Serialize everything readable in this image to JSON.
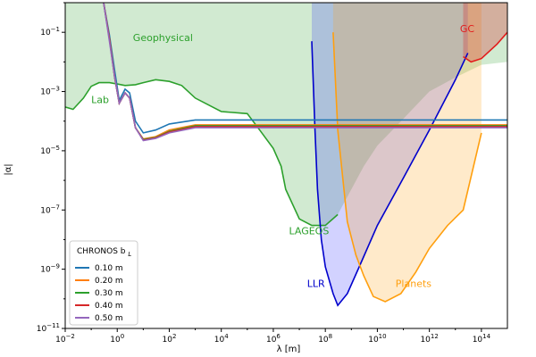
{
  "chart_data": {
    "type": "line",
    "title": "",
    "xlabel": "λ [m]",
    "ylabel": "|α|",
    "xscale": "log",
    "yscale": "log",
    "xlim": [
      0.01,
      1000000000000000.0
    ],
    "ylim": [
      1e-11,
      1
    ],
    "x_ticks": [
      {
        "value": 0.01,
        "base": "10",
        "exp": "−2"
      },
      {
        "value": 1,
        "base": "10",
        "exp": "0"
      },
      {
        "value": 100,
        "base": "10",
        "exp": "2"
      },
      {
        "value": 10000,
        "base": "10",
        "exp": "4"
      },
      {
        "value": 1000000,
        "base": "10",
        "exp": "6"
      },
      {
        "value": 100000000,
        "base": "10",
        "exp": "8"
      },
      {
        "value": 10000000000,
        "base": "10",
        "exp": "10"
      },
      {
        "value": 1000000000000,
        "base": "10",
        "exp": "12"
      },
      {
        "value": 100000000000000,
        "base": "10",
        "exp": "14"
      }
    ],
    "y_ticks": [
      {
        "value": 0.1,
        "base": "10",
        "exp": "−1"
      },
      {
        "value": 0.001,
        "base": "10",
        "exp": "−3"
      },
      {
        "value": 1e-05,
        "base": "10",
        "exp": "−5"
      },
      {
        "value": 1e-07,
        "base": "10",
        "exp": "−7"
      },
      {
        "value": 1e-09,
        "base": "10",
        "exp": "−9"
      },
      {
        "value": 1e-11,
        "base": "10",
        "exp": "−11"
      }
    ],
    "regions": [
      {
        "name": "Geophysical+Lab",
        "fill": "#2ca02c",
        "opacity": 0.22,
        "boundary": [
          [
            0.01,
            0.0003
          ],
          [
            0.02,
            0.00025
          ],
          [
            0.05,
            0.0006
          ],
          [
            0.1,
            0.0015
          ],
          [
            0.2,
            0.002
          ],
          [
            0.5,
            0.002
          ],
          [
            1,
            0.0018
          ],
          [
            2,
            0.0016
          ],
          [
            5,
            0.0017
          ],
          [
            10,
            0.002
          ],
          [
            30,
            0.0025
          ],
          [
            100,
            0.0022
          ],
          [
            300,
            0.0016
          ],
          [
            1000,
            0.0006
          ],
          [
            10000,
            0.00021
          ],
          [
            100000,
            0.00018
          ],
          [
            300000,
            5e-05
          ],
          [
            1000000,
            1.2e-05
          ],
          [
            2000000,
            3e-06
          ],
          [
            3000000,
            5e-07
          ],
          [
            10000000,
            5e-08
          ],
          [
            30000000,
            3e-08
          ],
          [
            100000000,
            3e-08
          ],
          [
            300000000,
            7e-08
          ],
          [
            1000000000,
            5e-07
          ],
          [
            3000000000,
            3e-06
          ],
          [
            10000000000,
            1.5e-05
          ],
          [
            100000000000,
            0.00012
          ],
          [
            1000000000000,
            0.001
          ],
          [
            10000000000000,
            0.003
          ],
          [
            100000000000000,
            0.008
          ],
          [
            1000000000000000,
            0.01
          ]
        ]
      },
      {
        "name": "LLR",
        "fill": "#1f1fff",
        "opacity": 0.2,
        "boundary": [
          [
            30000000,
            0.05
          ],
          [
            40000000,
            5e-05
          ],
          [
            50000000,
            5e-07
          ],
          [
            70000000,
            1e-08
          ],
          [
            100000000,
            1.2e-09
          ],
          [
            200000000,
            1.5e-10
          ],
          [
            300000000,
            6e-11
          ],
          [
            700000000,
            1.5e-10
          ],
          [
            2000000000,
            1.2e-09
          ],
          [
            10000000000,
            3e-08
          ],
          [
            100000000000,
            1.2e-06
          ],
          [
            1000000000000,
            5e-05
          ],
          [
            10000000000000,
            0.0025
          ],
          [
            30000000000000,
            0.02
          ]
        ]
      },
      {
        "name": "Planets",
        "fill": "#ff9f0e",
        "opacity": 0.22,
        "boundary": [
          [
            200000000,
            0.1
          ],
          [
            300000000,
            5e-05
          ],
          [
            700000000,
            4e-08
          ],
          [
            1500000000,
            3e-09
          ],
          [
            3000000000,
            6e-10
          ],
          [
            7000000000,
            1.2e-10
          ],
          [
            20000000000,
            8e-11
          ],
          [
            80000000000,
            1.5e-10
          ],
          [
            300000000000,
            8e-10
          ],
          [
            1000000000000,
            5e-09
          ],
          [
            5000000000000,
            3e-08
          ],
          [
            20000000000000,
            1e-07
          ],
          [
            100000000000000,
            4e-05
          ]
        ]
      },
      {
        "name": "GC",
        "fill": "#d62728",
        "opacity": 0.3,
        "boundary": [
          [
            20000000000000,
            0.015
          ],
          [
            40000000000000,
            0.01
          ],
          [
            100000000000000,
            0.013
          ],
          [
            400000000000000,
            0.04
          ],
          [
            1000000000000000,
            0.1
          ]
        ]
      }
    ],
    "exclusion_curves": [
      {
        "name": "LAGEOS",
        "color": "#2ca02c"
      },
      {
        "name": "LLR",
        "color": "#0000cc"
      },
      {
        "name": "Planets",
        "color": "#ff9f0e"
      },
      {
        "name": "GC",
        "color": "#e31b1b"
      }
    ],
    "series": [
      {
        "name": "0.10 m",
        "color": "#1f77b4",
        "plateau": 0.00011,
        "points": [
          [
            0.3,
            1
          ],
          [
            0.5,
            0.08
          ],
          [
            0.8,
            0.005
          ],
          [
            1.2,
            0.0005
          ],
          [
            2,
            0.0012
          ],
          [
            3,
            0.0009
          ],
          [
            5,
            0.0001
          ],
          [
            10,
            4e-05
          ],
          [
            30,
            5e-05
          ],
          [
            100,
            8e-05
          ],
          [
            1000,
            0.00011
          ],
          [
            1000000000000000,
            0.00011
          ]
        ]
      },
      {
        "name": "0.20 m",
        "color": "#ff7f0e",
        "plateau": 7.5e-05,
        "points": [
          [
            0.3,
            1
          ],
          [
            0.5,
            0.06
          ],
          [
            0.8,
            0.003
          ],
          [
            1.2,
            0.0004
          ],
          [
            2,
            0.0009
          ],
          [
            3,
            0.0006
          ],
          [
            5,
            6e-05
          ],
          [
            10,
            2.5e-05
          ],
          [
            30,
            3e-05
          ],
          [
            100,
            5e-05
          ],
          [
            1000,
            7.5e-05
          ],
          [
            1000000000000000,
            7.5e-05
          ]
        ]
      },
      {
        "name": "0.30 m",
        "color": "#2ca02c",
        "plateau": 7e-05,
        "points": [
          [
            0.3,
            1
          ],
          [
            0.5,
            0.06
          ],
          [
            0.8,
            0.003
          ],
          [
            1.2,
            0.0004
          ],
          [
            2,
            0.0009
          ],
          [
            3,
            0.0006
          ],
          [
            5,
            6e-05
          ],
          [
            10,
            2.4e-05
          ],
          [
            30,
            2.8e-05
          ],
          [
            100,
            4.5e-05
          ],
          [
            1000,
            7e-05
          ],
          [
            1000000000000000,
            7e-05
          ]
        ]
      },
      {
        "name": "0.40 m",
        "color": "#d62728",
        "plateau": 6.5e-05,
        "points": [
          [
            0.3,
            1
          ],
          [
            0.5,
            0.06
          ],
          [
            0.8,
            0.003
          ],
          [
            1.2,
            0.0004
          ],
          [
            2,
            0.0009
          ],
          [
            3,
            0.0006
          ],
          [
            5,
            6e-05
          ],
          [
            10,
            2.3e-05
          ],
          [
            30,
            2.7e-05
          ],
          [
            100,
            4.3e-05
          ],
          [
            1000,
            6.5e-05
          ],
          [
            1000000000000000,
            6.5e-05
          ]
        ]
      },
      {
        "name": "0.50 m",
        "color": "#9467bd",
        "plateau": 6e-05,
        "points": [
          [
            0.3,
            1
          ],
          [
            0.5,
            0.05
          ],
          [
            0.8,
            0.003
          ],
          [
            1.2,
            0.0004
          ],
          [
            2,
            0.0009
          ],
          [
            3,
            0.0006
          ],
          [
            5,
            6e-05
          ],
          [
            10,
            2.2e-05
          ],
          [
            30,
            2.6e-05
          ],
          [
            100,
            4e-05
          ],
          [
            1000,
            6e-05
          ],
          [
            1000000000000000,
            6e-05
          ]
        ]
      }
    ],
    "annotations": [
      {
        "text": "Geophysical",
        "color": "#2ca02c",
        "x": 4,
        "y": 0.05
      },
      {
        "text": "Lab",
        "color": "#2ca02c",
        "x": 0.1,
        "y": 0.0004
      },
      {
        "text": "LAGEOS",
        "color": "#2ca02c",
        "x": 4000000,
        "y": 1.5e-08
      },
      {
        "text": "LLR",
        "color": "#0000cc",
        "x": 20000000,
        "y": 2.5e-10
      },
      {
        "text": "Planets",
        "color": "#ff9f0e",
        "x": 50000000000,
        "y": 2.5e-10
      },
      {
        "text": "GC",
        "color": "#e31b1b",
        "x": 15000000000000,
        "y": 0.1
      }
    ],
    "legend": {
      "title": "CHRONOS b",
      "title_subscript": "L",
      "placement": "lower-left"
    }
  }
}
